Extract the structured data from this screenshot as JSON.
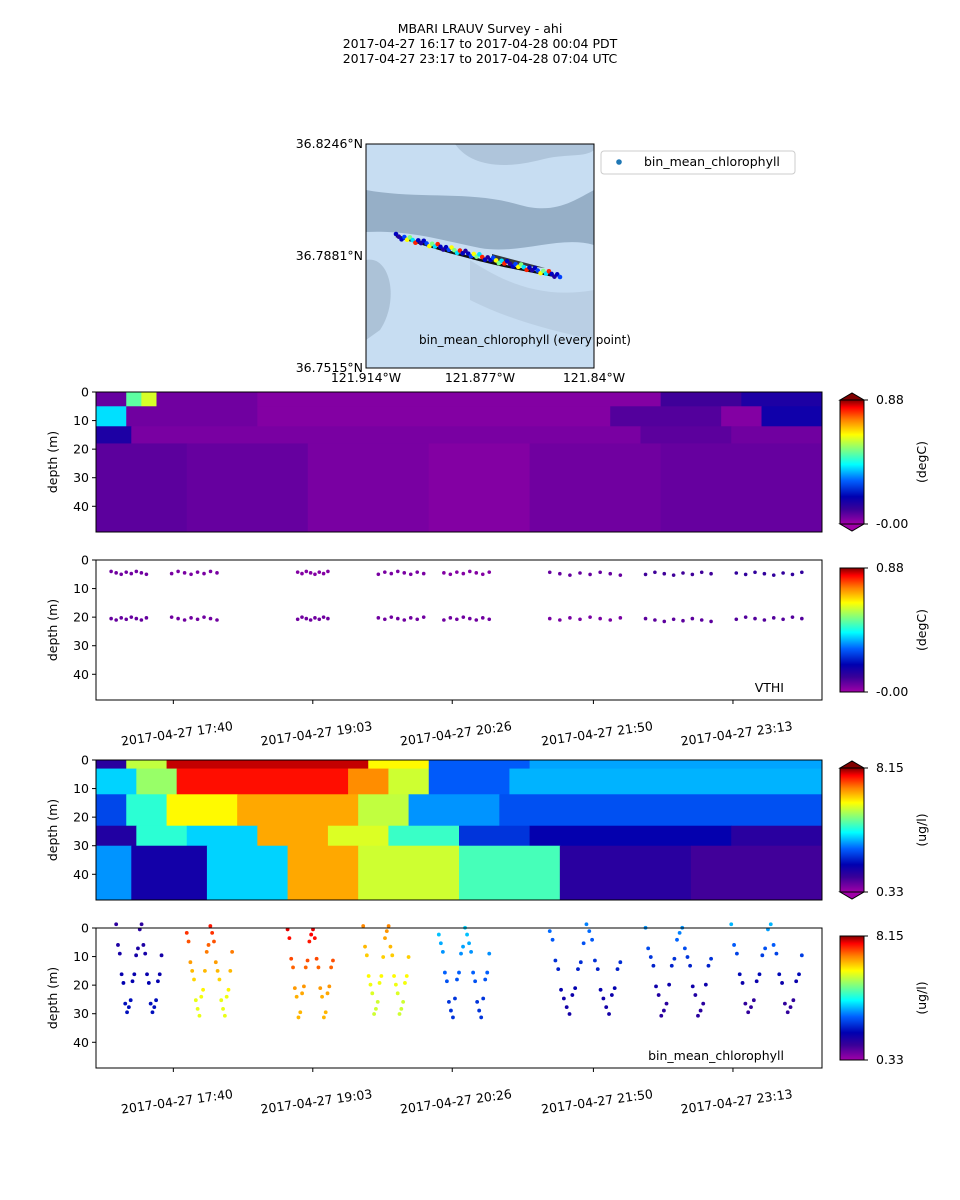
{
  "title": {
    "line1": "MBARI LRAUV Survey - ahi",
    "line2": "2017-04-27 16:17  to  2017-04-28 00:04 PDT",
    "line3": "2017-04-27 23:17  to  2017-04-28 07:04 UTC"
  },
  "colors": {
    "map_water": "#c7ddf2",
    "map_shelf": "#8da7c0",
    "track_line": "#101010",
    "legend_marker": "#1f77b4"
  },
  "map": {
    "lat_ticks": [
      "36.8246°N",
      "36.7881°N",
      "36.7515°N"
    ],
    "lon_ticks": [
      "121.914°W",
      "121.877°W",
      "121.84°W"
    ],
    "legend_label": "bin_mean_chlorophyll",
    "caption": "bin_mean_chlorophyll (every point)"
  },
  "time_ticks": [
    "2017-04-27 17:40",
    "2017-04-27 19:03",
    "2017-04-27 20:26",
    "2017-04-27 21:50",
    "2017-04-27 23:13"
  ],
  "depth_ylabel": "depth (m)",
  "chart_data": [
    {
      "type": "heatmap",
      "panel": "temperature-interpolated",
      "colormap": "plasma-jet",
      "ylabel": "depth (m)",
      "ylim": [
        49,
        0
      ],
      "yticks": [
        0,
        10,
        20,
        30,
        40
      ],
      "colorbar": {
        "min": "-0.00",
        "max": "0.88",
        "unit": "(degC)",
        "range": [
          0,
          0.88
        ]
      },
      "xlim_hours": [
        16.9,
        24.1
      ],
      "layers": [
        {
          "top": 0,
          "bottom": 5,
          "segments": [
            {
              "t": [
                16.9,
                17.2
              ],
              "v": 0.06
            },
            {
              "t": [
                17.2,
                17.35
              ],
              "v": 0.5
            },
            {
              "t": [
                17.35,
                17.5
              ],
              "v": 0.6
            },
            {
              "t": [
                17.5,
                18.5
              ],
              "v": 0.05
            },
            {
              "t": [
                18.5,
                22.5
              ],
              "v": 0.03
            },
            {
              "t": [
                22.5,
                23.3
              ],
              "v": 0.1
            },
            {
              "t": [
                23.3,
                24.1
              ],
              "v": 0.15
            }
          ]
        },
        {
          "top": 5,
          "bottom": 12,
          "segments": [
            {
              "t": [
                16.9,
                17.2
              ],
              "v": 0.4
            },
            {
              "t": [
                17.2,
                18.5
              ],
              "v": 0.05
            },
            {
              "t": [
                18.5,
                22.0
              ],
              "v": 0.03
            },
            {
              "t": [
                22.0,
                23.1
              ],
              "v": 0.08
            },
            {
              "t": [
                23.1,
                23.5
              ],
              "v": 0.03
            },
            {
              "t": [
                23.5,
                24.1
              ],
              "v": 0.17
            }
          ]
        },
        {
          "top": 12,
          "bottom": 18,
          "segments": [
            {
              "t": [
                16.9,
                17.25
              ],
              "v": 0.15
            },
            {
              "t": [
                17.25,
                22.3
              ],
              "v": 0.04
            },
            {
              "t": [
                22.3,
                23.2
              ],
              "v": 0.07
            },
            {
              "t": [
                23.2,
                24.1
              ],
              "v": 0.05
            }
          ]
        },
        {
          "top": 18,
          "bottom": 49,
          "segments": [
            {
              "t": [
                16.9,
                17.8
              ],
              "v": 0.07
            },
            {
              "t": [
                17.8,
                19.0
              ],
              "v": 0.06
            },
            {
              "t": [
                19.0,
                20.2
              ],
              "v": 0.04
            },
            {
              "t": [
                20.2,
                21.2
              ],
              "v": 0.03
            },
            {
              "t": [
                21.2,
                22.5
              ],
              "v": 0.05
            },
            {
              "t": [
                22.5,
                24.1
              ],
              "v": 0.06
            }
          ]
        }
      ]
    },
    {
      "type": "scatter",
      "panel": "temperature-points",
      "series_label": "VTHI",
      "ylabel": "depth (m)",
      "ylim": [
        49,
        0
      ],
      "yticks": [
        0,
        10,
        20,
        30,
        40
      ],
      "colorbar": {
        "min": "-0.00",
        "max": "0.88",
        "unit": "(degC)",
        "range": [
          0,
          0.88
        ]
      },
      "xlim_hours": [
        16.9,
        24.1
      ],
      "xticks_hours": [
        17.667,
        19.05,
        20.433,
        21.833,
        23.217
      ],
      "groups": [
        {
          "t": [
            17.05,
            17.4
          ],
          "depths": [
            4.5,
            20.5
          ],
          "values": [
            0.05,
            0.06
          ]
        },
        {
          "t": [
            17.65,
            18.1
          ],
          "depths": [
            4.5,
            20.5
          ],
          "values": [
            0.04,
            0.05
          ]
        },
        {
          "t": [
            18.9,
            19.2
          ],
          "depths": [
            4.5,
            20.5
          ],
          "values": [
            0.03,
            0.05
          ]
        },
        {
          "t": [
            19.7,
            20.15
          ],
          "depths": [
            4.5,
            20.5
          ],
          "values": [
            0.04,
            0.05
          ]
        },
        {
          "t": [
            20.35,
            20.8
          ],
          "depths": [
            4.5,
            20.5
          ],
          "values": [
            0.03,
            0.05
          ]
        },
        {
          "t": [
            21.4,
            22.1
          ],
          "depths": [
            4.8,
            20.5
          ],
          "values": [
            0.06,
            0.04
          ]
        },
        {
          "t": [
            22.35,
            23.0
          ],
          "depths": [
            4.8,
            21.0
          ],
          "values": [
            0.1,
            0.07
          ]
        },
        {
          "t": [
            23.25,
            23.9
          ],
          "depths": [
            4.8,
            20.5
          ],
          "values": [
            0.12,
            0.08
          ]
        }
      ]
    },
    {
      "type": "heatmap",
      "panel": "chlorophyll-interpolated",
      "colormap": "plasma-jet",
      "ylabel": "depth (m)",
      "ylim": [
        49,
        0
      ],
      "yticks": [
        0,
        10,
        20,
        30,
        40
      ],
      "colorbar": {
        "min": "0.33",
        "max": "8.15",
        "unit": "(ug/l)",
        "range": [
          0.33,
          8.15
        ]
      },
      "xlim_hours": [
        16.9,
        24.1
      ],
      "layers": [
        {
          "top": 0,
          "bottom": 3,
          "segments": [
            {
              "t": [
                16.9,
                17.2
              ],
              "v": 1.5
            },
            {
              "t": [
                17.2,
                17.6
              ],
              "v": 5.5
            },
            {
              "t": [
                17.6,
                19.6
              ],
              "v": 7.9
            },
            {
              "t": [
                19.6,
                20.2
              ],
              "v": 6.0
            },
            {
              "t": [
                20.2,
                21.2
              ],
              "v": 3.0
            },
            {
              "t": [
                21.2,
                24.1
              ],
              "v": 3.5
            }
          ]
        },
        {
          "top": 3,
          "bottom": 12,
          "segments": [
            {
              "t": [
                16.9,
                17.3
              ],
              "v": 3.8
            },
            {
              "t": [
                17.3,
                17.7
              ],
              "v": 5.2
            },
            {
              "t": [
                17.7,
                19.4
              ],
              "v": 7.6
            },
            {
              "t": [
                19.4,
                19.8
              ],
              "v": 6.8
            },
            {
              "t": [
                19.8,
                20.2
              ],
              "v": 5.6
            },
            {
              "t": [
                20.2,
                21.0
              ],
              "v": 3.0
            },
            {
              "t": [
                21.0,
                24.1
              ],
              "v": 3.6
            }
          ]
        },
        {
          "top": 12,
          "bottom": 23,
          "segments": [
            {
              "t": [
                16.9,
                17.2
              ],
              "v": 2.8
            },
            {
              "t": [
                17.2,
                17.6
              ],
              "v": 4.4
            },
            {
              "t": [
                17.6,
                18.3
              ],
              "v": 6.0
            },
            {
              "t": [
                18.3,
                19.5
              ],
              "v": 6.6
            },
            {
              "t": [
                19.5,
                20.0
              ],
              "v": 5.5
            },
            {
              "t": [
                20.0,
                20.9
              ],
              "v": 3.4
            },
            {
              "t": [
                20.9,
                24.1
              ],
              "v": 2.9
            }
          ]
        },
        {
          "top": 23,
          "bottom": 30,
          "segments": [
            {
              "t": [
                16.9,
                17.3
              ],
              "v": 1.6
            },
            {
              "t": [
                17.3,
                17.8
              ],
              "v": 4.4
            },
            {
              "t": [
                17.8,
                18.5
              ],
              "v": 3.8
            },
            {
              "t": [
                18.5,
                19.2
              ],
              "v": 6.6
            },
            {
              "t": [
                19.2,
                19.8
              ],
              "v": 5.7
            },
            {
              "t": [
                19.8,
                20.5
              ],
              "v": 4.5
            },
            {
              "t": [
                20.5,
                21.2
              ],
              "v": 2.6
            },
            {
              "t": [
                21.2,
                23.2
              ],
              "v": 2.0
            },
            {
              "t": [
                23.2,
                24.1
              ],
              "v": 1.5
            }
          ]
        },
        {
          "top": 30,
          "bottom": 49,
          "segments": [
            {
              "t": [
                16.9,
                17.25
              ],
              "v": 3.4
            },
            {
              "t": [
                17.25,
                18.0
              ],
              "v": 1.8
            },
            {
              "t": [
                18.0,
                18.8
              ],
              "v": 3.8
            },
            {
              "t": [
                18.8,
                19.5
              ],
              "v": 6.6
            },
            {
              "t": [
                19.5,
                20.5
              ],
              "v": 5.6
            },
            {
              "t": [
                20.5,
                21.5
              ],
              "v": 4.6
            },
            {
              "t": [
                21.5,
                22.8
              ],
              "v": 1.5
            },
            {
              "t": [
                22.8,
                24.1
              ],
              "v": 1.2
            }
          ]
        }
      ]
    },
    {
      "type": "scatter",
      "panel": "chlorophyll-points",
      "series_label": "bin_mean_chlorophyll",
      "ylabel": "depth (m)",
      "ylim": [
        49,
        0
      ],
      "yticks": [
        0,
        10,
        20,
        30,
        40
      ],
      "colorbar": {
        "min": "0.33",
        "max": "8.15",
        "unit": "(ug/l)",
        "range": [
          0.33,
          8.15
        ]
      },
      "xlim_hours": [
        16.9,
        24.1
      ],
      "xticks_hours": [
        17.667,
        19.05,
        20.433,
        21.833,
        23.217
      ],
      "groups": [
        {
          "t": [
            17.1,
            17.55
          ],
          "vtop": 1.5,
          "vbottom": 2.2
        },
        {
          "t": [
            17.8,
            18.25
          ],
          "vtop": 7.5,
          "vbottom": 5.8
        },
        {
          "t": [
            18.8,
            19.25
          ],
          "vtop": 7.8,
          "vbottom": 6.5
        },
        {
          "t": [
            19.55,
            20.0
          ],
          "vtop": 6.8,
          "vbottom": 5.6
        },
        {
          "t": [
            20.3,
            20.8
          ],
          "vtop": 3.8,
          "vbottom": 2.6
        },
        {
          "t": [
            21.4,
            22.1
          ],
          "vtop": 3.2,
          "vbottom": 1.8
        },
        {
          "t": [
            22.35,
            23.0
          ],
          "vtop": 3.4,
          "vbottom": 1.5
        },
        {
          "t": [
            23.2,
            23.9
          ],
          "vtop": 3.5,
          "vbottom": 1.4
        }
      ]
    }
  ]
}
